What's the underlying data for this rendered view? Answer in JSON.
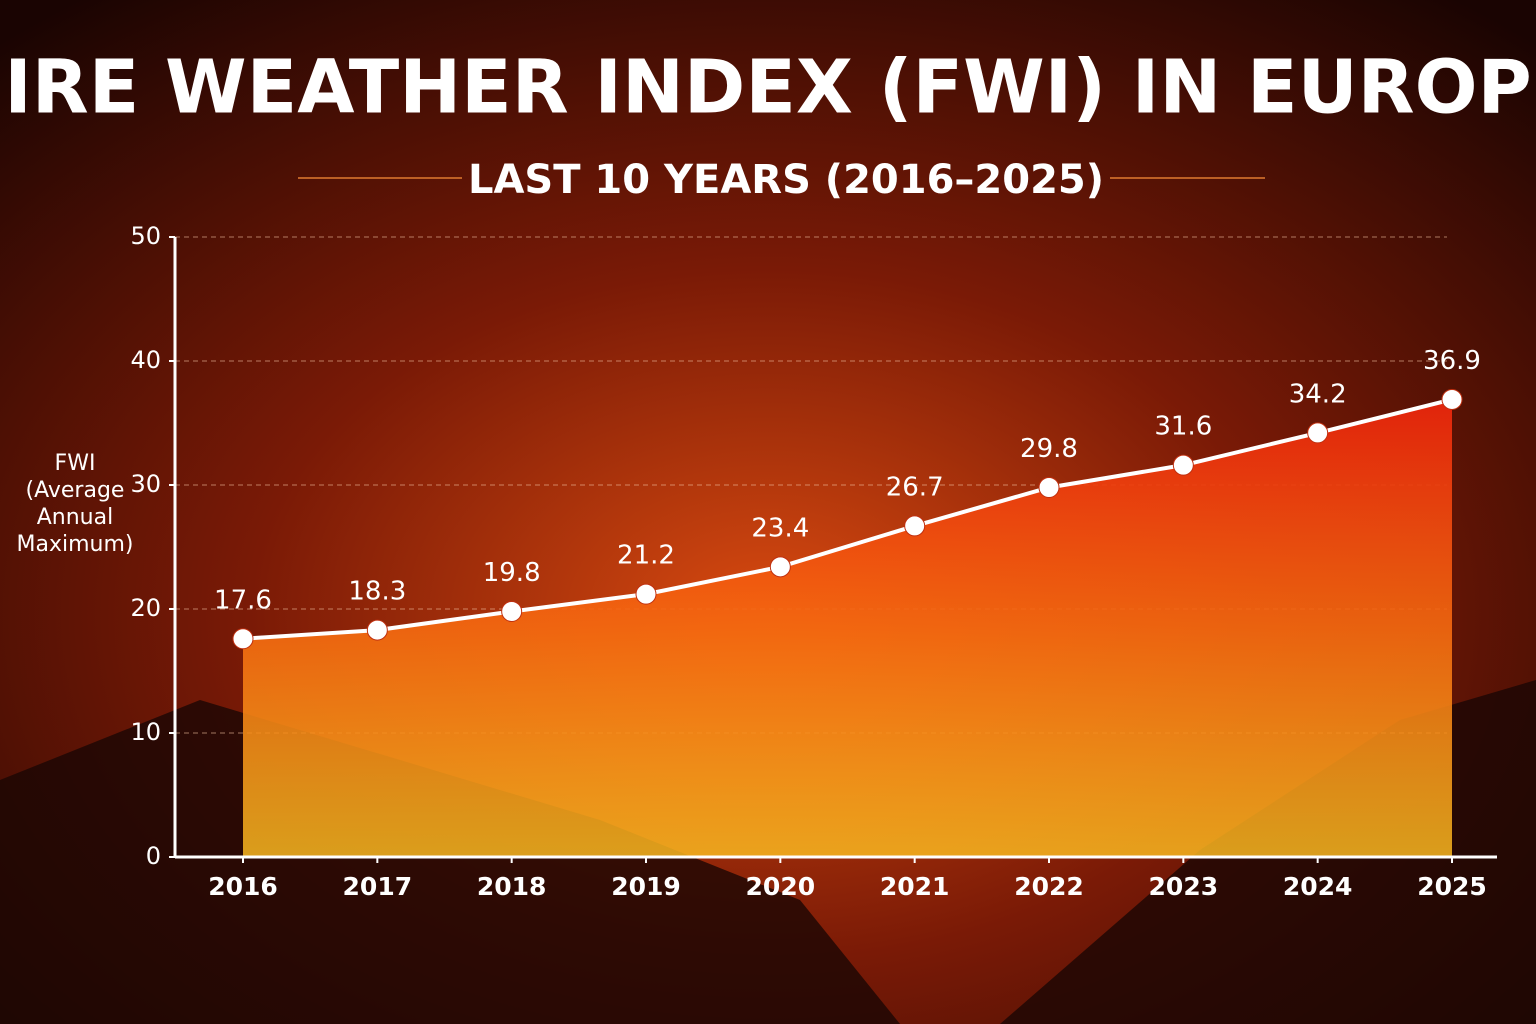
{
  "chart_data": {
    "type": "line",
    "title": "FIRE WEATHER INDEX (FWI) IN EUROPE",
    "subtitle": "LAST 10 YEARS (2016–2025)",
    "y_label": "FWI (Average Annual Maximum)",
    "categories": [
      "2016",
      "2017",
      "2018",
      "2019",
      "2020",
      "2021",
      "2022",
      "2023",
      "2024",
      "2025"
    ],
    "values": [
      17.6,
      18.3,
      19.8,
      21.2,
      23.4,
      26.7,
      29.8,
      31.6,
      34.2,
      36.9
    ],
    "color": "#ffffff",
    "area": true,
    "ylim": [
      0,
      50
    ],
    "yticks": [
      0,
      10,
      20,
      30,
      40,
      50
    ],
    "grid": true
  }
}
